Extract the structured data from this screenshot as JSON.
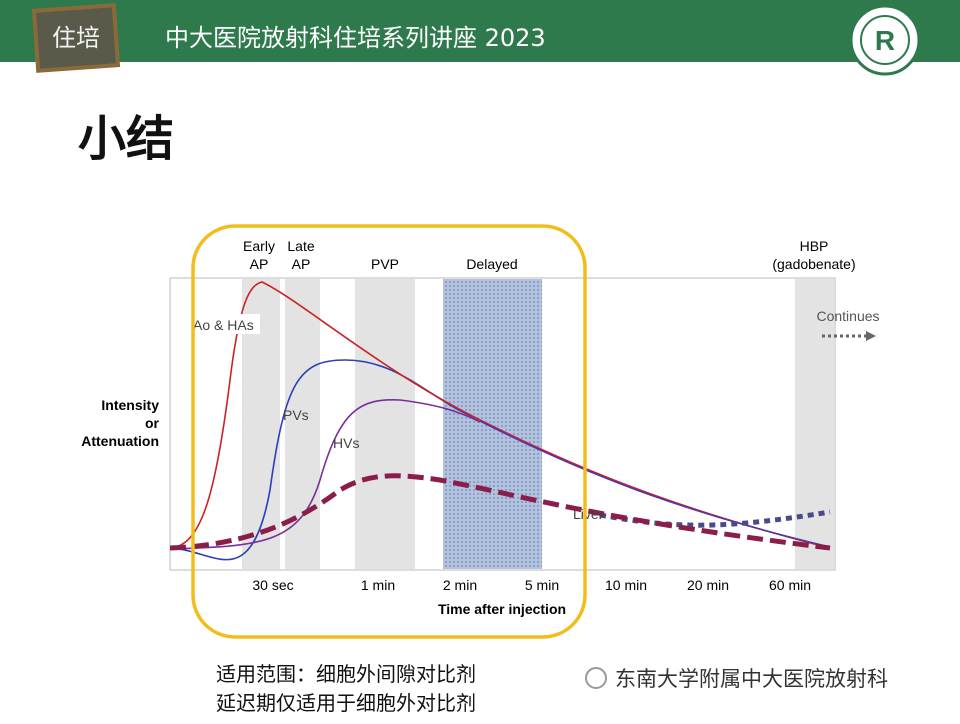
{
  "header": {
    "logo": "住培",
    "title": "中大医院放射科住培系列讲座 2023"
  },
  "slide_title": "小结",
  "diagram": {
    "phases": [
      [
        "Early",
        "AP"
      ],
      [
        "Late",
        "AP"
      ],
      [
        "PVP"
      ],
      [
        "Delayed"
      ],
      [
        "HBP",
        "(gadobenate)"
      ]
    ],
    "continues": "Continues",
    "curve_labels": [
      "Ao & HAs",
      "PVs",
      "HVs",
      "Liver"
    ],
    "y_label": [
      "Intensity",
      "or",
      "Attenuation"
    ],
    "x_labels": [
      "30 sec",
      "1 min",
      "2 min",
      "5 min",
      "10 min",
      "20 min",
      "60 min"
    ],
    "x_title": "Time after injection"
  },
  "notes": [
    "适用范围：细胞外间隙对比剂",
    "延迟期仅适用于细胞外对比剂"
  ],
  "watermark": "东南大学附属中大医院放射科"
}
